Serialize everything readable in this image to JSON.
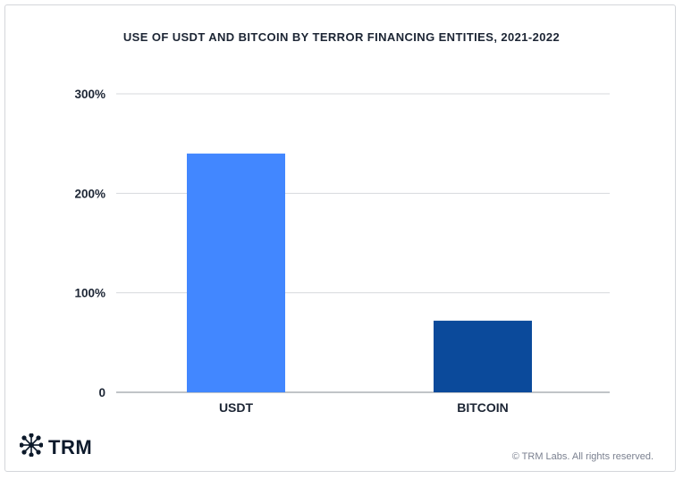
{
  "chart_data": {
    "type": "bar",
    "title": "USE OF USDT AND BITCOIN BY TERROR FINANCING ENTITIES, 2021-2022",
    "categories": [
      "USDT",
      "BITCOIN"
    ],
    "values": [
      240,
      72
    ],
    "colors": [
      "#4287ff",
      "#0b4a9b"
    ],
    "ylim": [
      0,
      300
    ],
    "yticks": [
      0,
      100,
      200,
      300
    ],
    "ytick_labels": [
      "0",
      "100%",
      "200%",
      "300%"
    ],
    "xlabel": "",
    "ylabel": "",
    "grid": true,
    "legend": "none"
  },
  "branding": {
    "logo_text": "TRM",
    "logo_icon": "network-star-icon",
    "copyright": "© TRM Labs. All rights reserved."
  }
}
